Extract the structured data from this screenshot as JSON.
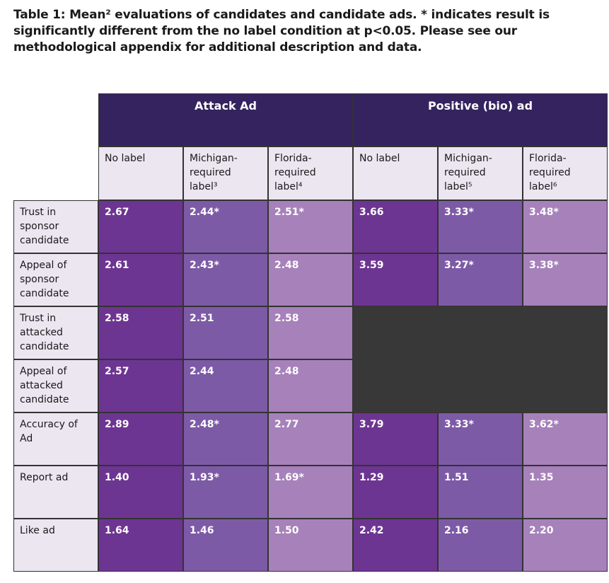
{
  "caption": "Table 1: Mean² evaluations of candidates and candidate ads. * indicates result is significantly different from the no label condition at p<0.05. Please see our methodological appendix for additional description and data.",
  "groups": [
    "Attack Ad",
    "Positive (bio) ad"
  ],
  "subheaders": [
    "No label",
    "Michigan-\nrequired label³",
    "Florida-\nrequired label⁴",
    "No label",
    "Michigan-\nrequired label⁵",
    "Florida-\nrequired label⁶"
  ],
  "rows": [
    {
      "label": "Trust in\nsponsor\ncandidate",
      "values": [
        "2.67",
        "2.44*",
        "2.51*",
        "3.66",
        "3.33*",
        "3.48*"
      ]
    },
    {
      "label": "Appeal of\nsponsor\ncandidate",
      "values": [
        "2.61",
        "2.43*",
        "2.48",
        "3.59",
        "3.27*",
        "3.38*"
      ]
    },
    {
      "label": "Trust in\nattacked\ncandidate",
      "values": [
        "2.58",
        "2.51",
        "2.58",
        "",
        "",
        ""
      ]
    },
    {
      "label": "Appeal of\nattacked\ncandidate",
      "values": [
        "2.57",
        "2.44",
        "2.48",
        "",
        "",
        ""
      ]
    },
    {
      "label": "Accuracy of\nAd",
      "values": [
        "2.89",
        "2.48*",
        "2.77",
        "3.79",
        "3.33*",
        "3.62*"
      ]
    },
    {
      "label": "Report ad",
      "values": [
        "1.40",
        "1.93*",
        "1.69*",
        "1.29",
        "1.51",
        "1.35"
      ]
    },
    {
      "label": "Like ad",
      "values": [
        "1.64",
        "1.46",
        "1.50",
        "2.42",
        "2.16",
        "2.20"
      ]
    }
  ],
  "colors": {
    "header": "#35235f",
    "light": "#ece6f1",
    "col_dark": "#6d3592",
    "col_mid": "#7d5aa6",
    "col_light": "#a681ba",
    "na_block": "#383838"
  }
}
